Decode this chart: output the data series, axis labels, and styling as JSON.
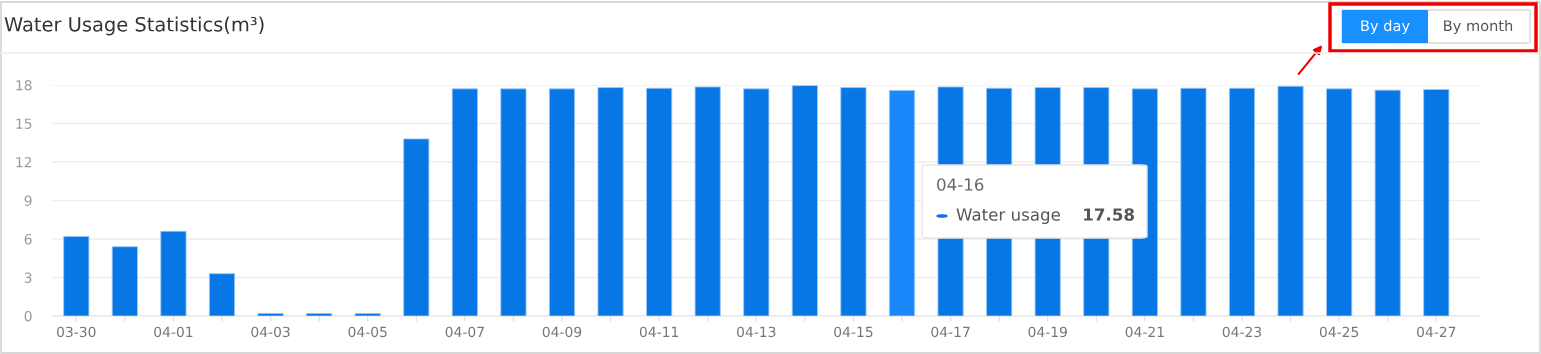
{
  "chart_data": {
    "type": "bar",
    "title": "Water Usage Statistics(m³)",
    "categories": [
      "03-30",
      null,
      "04-01",
      null,
      "04-03",
      null,
      "04-05",
      null,
      "04-07",
      null,
      "04-09",
      null,
      "04-11",
      null,
      "04-13",
      null,
      "04-15",
      null,
      "04-17",
      null,
      "04-19",
      null,
      "04-21",
      null,
      "04-23",
      null,
      "04-25",
      null,
      "04-27"
    ],
    "series": [
      {
        "name": "Water usage",
        "color": "#0877e6",
        "colors": [
          "#0877e6",
          "#0877e6",
          "#0877e6",
          "#0877e6",
          "#0877e6",
          "#0877e6",
          "#0877e6",
          "#0877e6",
          "#0877e6",
          "#0877e6",
          "#0877e6",
          "#0877e6",
          "#0877e6",
          "#0877e6",
          "#0877e6",
          "#0877e6",
          "#0877e6",
          "#1a88fa",
          "#0877e6",
          "#0877e6",
          "#0877e6",
          "#0877e6",
          "#0877e6",
          "#0877e6",
          "#0877e6",
          "#0877e6",
          "#0877e6",
          "#0877e6",
          "#0877e6"
        ],
        "values": [
          6.2,
          5.4,
          6.6,
          3.3,
          0.2,
          0.2,
          0.2,
          13.8,
          17.7,
          17.7,
          17.7,
          17.8,
          17.75,
          17.85,
          17.7,
          17.95,
          17.8,
          17.58,
          17.85,
          17.75,
          17.8,
          17.8,
          17.7,
          17.75,
          17.75,
          17.9,
          17.7,
          17.6,
          17.65
        ]
      }
    ],
    "ylim": [
      0,
      18
    ],
    "yticks": [
      0,
      3,
      6,
      9,
      12,
      15,
      18
    ],
    "grid": "y",
    "legend": "center right",
    "annotations": [
      "04-16",
      "17.58",
      "By day",
      "By month"
    ]
  }
}
